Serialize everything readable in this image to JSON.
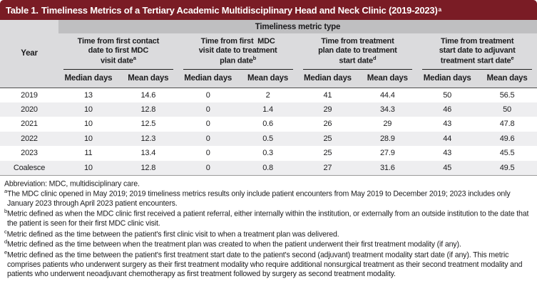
{
  "title": {
    "label": "Table 1.",
    "text": "Timeliness Metrics of a Tertiary Academic Multidisciplinary Head and Neck Clinic (2019-2023)",
    "sup": "a"
  },
  "header": {
    "metric_type_label": "Timeliness metric type",
    "year_label": "Year",
    "median_label": "Median days",
    "mean_label": "Mean days",
    "groups": [
      {
        "lines": [
          "Time from first contact",
          "date to first MDC",
          "visit date"
        ],
        "sup": "a"
      },
      {
        "lines": [
          "Time from first  MDC",
          "visit date to treatment",
          "plan date"
        ],
        "sup": "b"
      },
      {
        "lines": [
          "Time from treatment",
          "plan date to treatment",
          "start date"
        ],
        "sup": "d"
      },
      {
        "lines": [
          "Time from treatment",
          "start date to adjuvant",
          "treatment start date"
        ],
        "sup": "e"
      }
    ]
  },
  "rows": [
    {
      "year": "2019",
      "values": [
        "13",
        "14.6",
        "0",
        "2",
        "41",
        "44.4",
        "50",
        "56.5"
      ]
    },
    {
      "year": "2020",
      "values": [
        "10",
        "12.8",
        "0",
        "1.4",
        "29",
        "34.3",
        "46",
        "50"
      ]
    },
    {
      "year": "2021",
      "values": [
        "10",
        "12.5",
        "0",
        "0.6",
        "26",
        "29",
        "43",
        "47.8"
      ]
    },
    {
      "year": "2022",
      "values": [
        "10",
        "12.3",
        "0",
        "0.5",
        "25",
        "28.9",
        "44",
        "49.6"
      ]
    },
    {
      "year": "2023",
      "values": [
        "11",
        "13.4",
        "0",
        "0.3",
        "25",
        "27.9",
        "43",
        "45.5"
      ]
    },
    {
      "year": "Coalesce",
      "values": [
        "10",
        "12.8",
        "0",
        "0.8",
        "27",
        "31.6",
        "45",
        "49.5"
      ]
    }
  ],
  "footnotes": [
    {
      "sup": "",
      "text": "Abbreviation: MDC, multidisciplinary care."
    },
    {
      "sup": "a",
      "text": "The MDC clinic opened in May 2019; 2019 timeliness metrics results only include patient encounters from May 2019 to December 2019; 2023 includes only January 2023 through April 2023 patient encounters."
    },
    {
      "sup": "b",
      "text": "Metric defined as when the MDC clinic first received a patient referral, either internally within the institution, or externally from an outside institution to the date that the patient is seen for their first MDC clinic visit."
    },
    {
      "sup": "c",
      "text": "Metric defined as the time between the patient's first clinic visit to when a treatment plan was delivered."
    },
    {
      "sup": "d",
      "text": "Metric defined as the time between when the treatment plan was created to when the patient underwent their first treatment modality (if any)."
    },
    {
      "sup": "e",
      "text": "Metric defined as the time between the patient's first treatment start date to the patient's second (adjuvant) treatment modality start date (if any). This metric comprises patients who underwent surgery as their first treatment modality who require additional nonsurgical treatment as their second treatment modality and patients who underwent neoadjuvant chemotherapy as first treatment followed by surgery as second treatment modality."
    }
  ],
  "colors": {
    "accent_maroon": "#7a1c25",
    "banner_gray": "#bfbfc1",
    "header_gray": "#dbdbdd",
    "alt_row_gray": "#eeeef0"
  }
}
